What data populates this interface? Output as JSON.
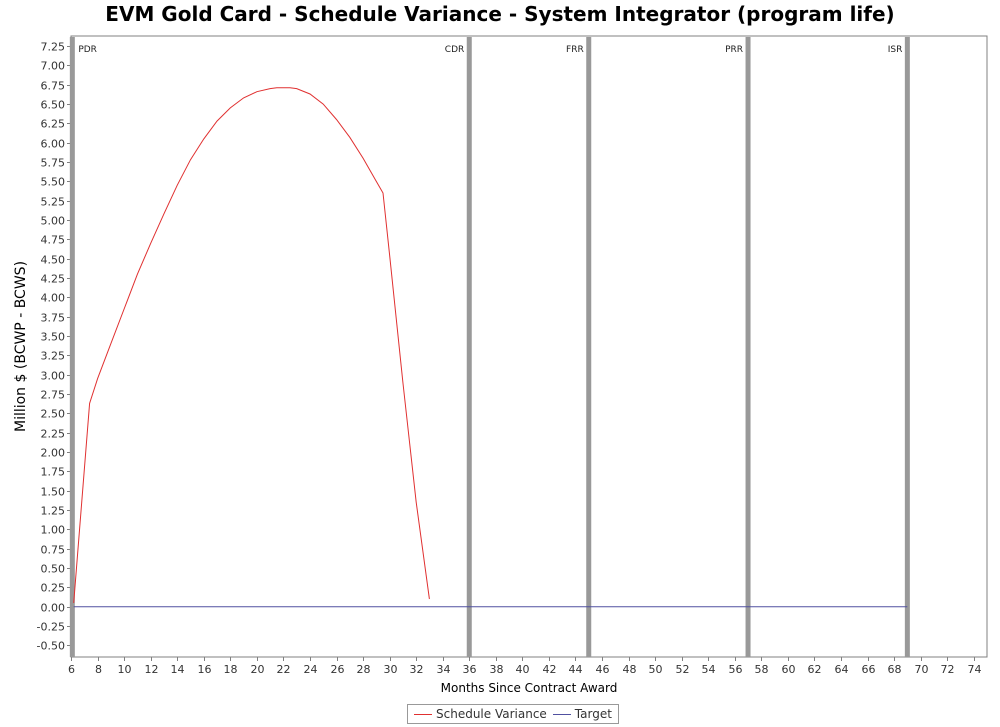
{
  "chart_data": {
    "type": "line",
    "title": "EVM Gold Card - Schedule Variance - System Integrator (program life)",
    "xlabel": "Months Since Contract Award",
    "ylabel": "Million $ (BCWP - BCWS)",
    "xlim": [
      6,
      75
    ],
    "ylim": [
      -0.65,
      7.38
    ],
    "x_ticks": [
      6,
      8,
      10,
      12,
      14,
      16,
      18,
      20,
      22,
      24,
      26,
      28,
      30,
      32,
      34,
      36,
      38,
      40,
      42,
      44,
      46,
      48,
      50,
      52,
      54,
      56,
      58,
      60,
      62,
      64,
      66,
      68,
      70,
      72,
      74
    ],
    "y_ticks": [
      -0.5,
      -0.25,
      0.0,
      0.25,
      0.5,
      0.75,
      1.0,
      1.25,
      1.5,
      1.75,
      2.0,
      2.25,
      2.5,
      2.75,
      3.0,
      3.25,
      3.5,
      3.75,
      4.0,
      4.25,
      4.5,
      4.75,
      5.0,
      5.25,
      5.5,
      5.75,
      6.0,
      6.25,
      6.5,
      6.75,
      7.0,
      7.25
    ],
    "y_tick_labels": [
      "-0.50",
      "-0.25",
      "0.00",
      "0.25",
      "0.50",
      "0.75",
      "1.00",
      "1.25",
      "1.50",
      "1.75",
      "2.00",
      "2.25",
      "2.50",
      "2.75",
      "3.00",
      "3.25",
      "3.50",
      "3.75",
      "4.00",
      "4.25",
      "4.50",
      "4.75",
      "5.00",
      "5.25",
      "5.50",
      "5.75",
      "6.00",
      "6.25",
      "6.50",
      "6.75",
      "7.00",
      "7.25"
    ],
    "grid": false,
    "legend_position": "bottom-center",
    "milestones": [
      {
        "label": "PDR",
        "x": 6.1
      },
      {
        "label": "CDR",
        "x": 36.0
      },
      {
        "label": "FRR",
        "x": 45.0
      },
      {
        "label": "PRR",
        "x": 57.0
      },
      {
        "label": "ISR",
        "x": 69.0
      }
    ],
    "series": [
      {
        "name": "Schedule Variance",
        "color": "#e03030",
        "x": [
          6.2,
          7.4,
          8.0,
          9.0,
          10.0,
          11.0,
          12.0,
          13.0,
          14.0,
          15.0,
          16.0,
          17.0,
          18.0,
          19.0,
          20.0,
          21.0,
          21.5,
          22.0,
          22.5,
          23.0,
          24.0,
          25.0,
          26.0,
          27.0,
          28.0,
          29.0,
          29.5,
          30.0,
          31.0,
          32.0,
          33.0
        ],
        "y": [
          0.05,
          2.63,
          2.95,
          3.4,
          3.85,
          4.3,
          4.7,
          5.08,
          5.45,
          5.78,
          6.05,
          6.28,
          6.45,
          6.58,
          6.66,
          6.7,
          6.71,
          6.71,
          6.71,
          6.7,
          6.63,
          6.5,
          6.3,
          6.07,
          5.8,
          5.5,
          5.35,
          4.55,
          2.9,
          1.35,
          0.1
        ]
      },
      {
        "name": "Target",
        "color": "#5050a0",
        "x": [
          6.2,
          69.0
        ],
        "y": [
          0.0,
          0.0
        ]
      }
    ]
  }
}
